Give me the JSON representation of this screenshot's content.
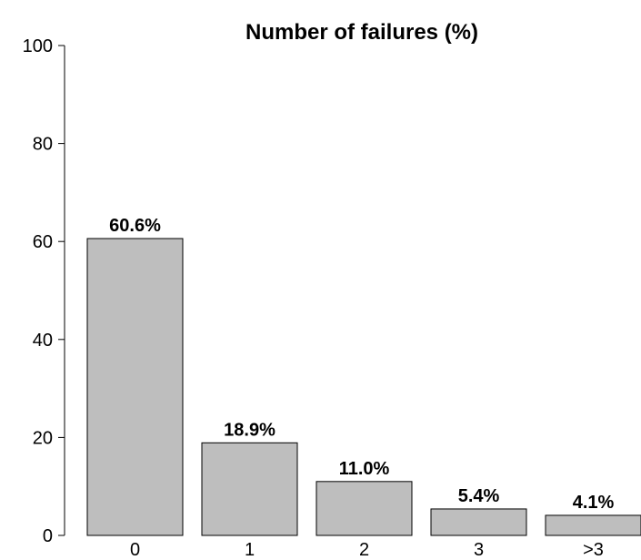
{
  "chart_data": {
    "type": "bar",
    "title": "Number of failures (%)",
    "xlabel": "",
    "ylabel": "",
    "categories": [
      "0",
      "1",
      "2",
      "3",
      ">3"
    ],
    "values": [
      60.6,
      18.9,
      11.0,
      5.4,
      4.1
    ],
    "data_labels": [
      "60.6%",
      "18.9%",
      "11.0%",
      "5.4%",
      "4.1%"
    ],
    "ylim": [
      0,
      100
    ],
    "yticks": [
      0,
      20,
      40,
      60,
      80,
      100
    ],
    "ytick_labels": [
      "0",
      "20",
      "40",
      "60",
      "80",
      "100"
    ],
    "grid": false,
    "bar_color": "#bebebe",
    "edge_color": "#000000"
  }
}
